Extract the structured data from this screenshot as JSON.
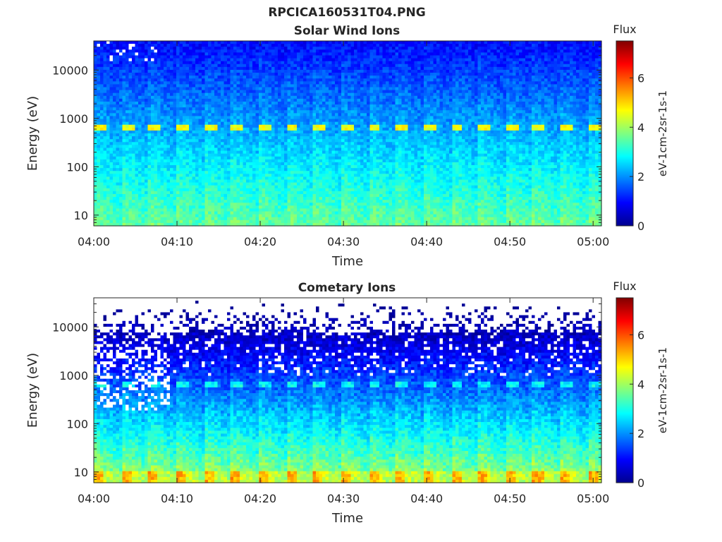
{
  "figure": {
    "title": "RPCICA160531T04.PNG"
  },
  "colormap": {
    "name": "jet",
    "stops": [
      "#00008f",
      "#0000ff",
      "#00ffff",
      "#ffff00",
      "#ff0000",
      "#800000"
    ]
  },
  "chart_data": [
    {
      "type": "heatmap",
      "title": "Solar Wind Ions",
      "xlabel": "Time",
      "ylabel": "Energy (eV)",
      "x_ticks": [
        "04:00",
        "04:10",
        "04:20",
        "04:30",
        "04:40",
        "04:50",
        "05:00"
      ],
      "x_range_minutes": [
        0,
        61
      ],
      "y_scale": "log",
      "y_ticks": [
        10,
        100,
        1000,
        10000
      ],
      "y_tick_labels": [
        "10",
        "100",
        "1000",
        "10000"
      ],
      "ylim": [
        6,
        40000
      ],
      "colorbar": {
        "title": "Flux",
        "label": "eV-1cm-2sr-1s-1",
        "ticks": [
          0,
          2,
          4,
          6
        ],
        "range": [
          0,
          7.5
        ]
      },
      "beam_energy_eV": 650,
      "scan_period_min": 3.3,
      "features": "narrow solar wind beam near ~600-700 eV, broad low-energy population"
    },
    {
      "type": "heatmap",
      "title": "Cometary Ions",
      "xlabel": "Time",
      "ylabel": "Energy (eV)",
      "x_ticks": [
        "04:00",
        "04:10",
        "04:20",
        "04:30",
        "04:40",
        "04:50",
        "05:00"
      ],
      "x_range_minutes": [
        0,
        61
      ],
      "y_scale": "log",
      "y_ticks": [
        10,
        100,
        1000,
        10000
      ],
      "y_tick_labels": [
        "10",
        "100",
        "1000",
        "10000"
      ],
      "ylim": [
        6,
        40000
      ],
      "colorbar": {
        "title": "Flux",
        "label": "eV-1cm-2sr-1s-1",
        "ticks": [
          0,
          2,
          4,
          6
        ],
        "range": [
          0,
          7.5
        ]
      },
      "beam_energy_eV": 650,
      "scan_period_min": 3.3,
      "features": "strong low-energy cometary ions below ~20 eV, sparse high-energy counts"
    }
  ]
}
